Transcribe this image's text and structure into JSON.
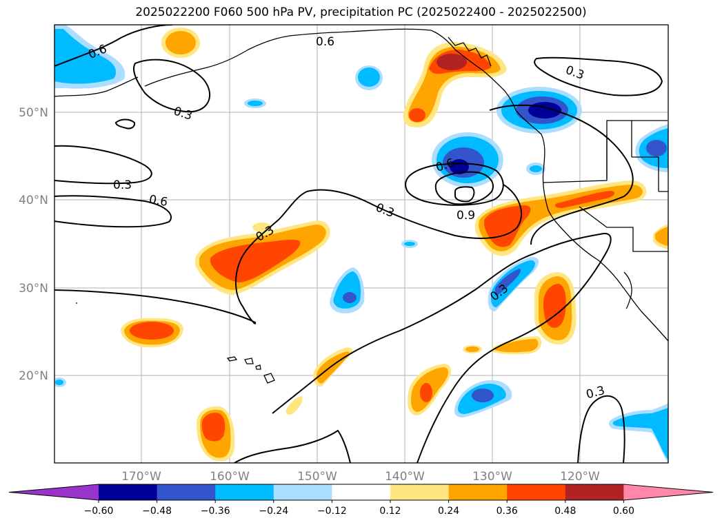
{
  "title": "2025022200 F060 500 hPa PV, precipitation PC (2025022400 - 2025022500)",
  "lon_labels": [
    "170°W",
    "160°W",
    "150°W",
    "140°W",
    "130°W",
    "120°W"
  ],
  "lat_labels": [
    "50°N",
    "40°N",
    "30°N",
    "20°N"
  ],
  "colorbar": {
    "ticks": [
      "−0.60",
      "−0.48",
      "−0.36",
      "−0.24",
      "−0.12",
      "0.12",
      "0.24",
      "0.36",
      "0.48",
      "0.60"
    ],
    "colors": [
      "#9933cc",
      "#000099",
      "#3355cc",
      "#00bbff",
      "#aaddff",
      "#ffffff",
      "#ffe680",
      "#ffa500",
      "#ff4500",
      "#b22222",
      "#ff88aa"
    ]
  },
  "contour_labels": [
    "0.6",
    "0.6",
    "0.3",
    "0.3",
    "0.3",
    "0.6",
    "0.3",
    "0.6",
    "0.3",
    "0.9",
    "0.3",
    "0.3"
  ],
  "colors": {
    "neg_light": "#aaddff",
    "neg_1": "#00bbff",
    "neg_2": "#3355cc",
    "neg_3": "#000099",
    "pos_light": "#ffe680",
    "pos_1": "#ffa500",
    "pos_2": "#ff4500",
    "pos_3": "#b22222"
  }
}
